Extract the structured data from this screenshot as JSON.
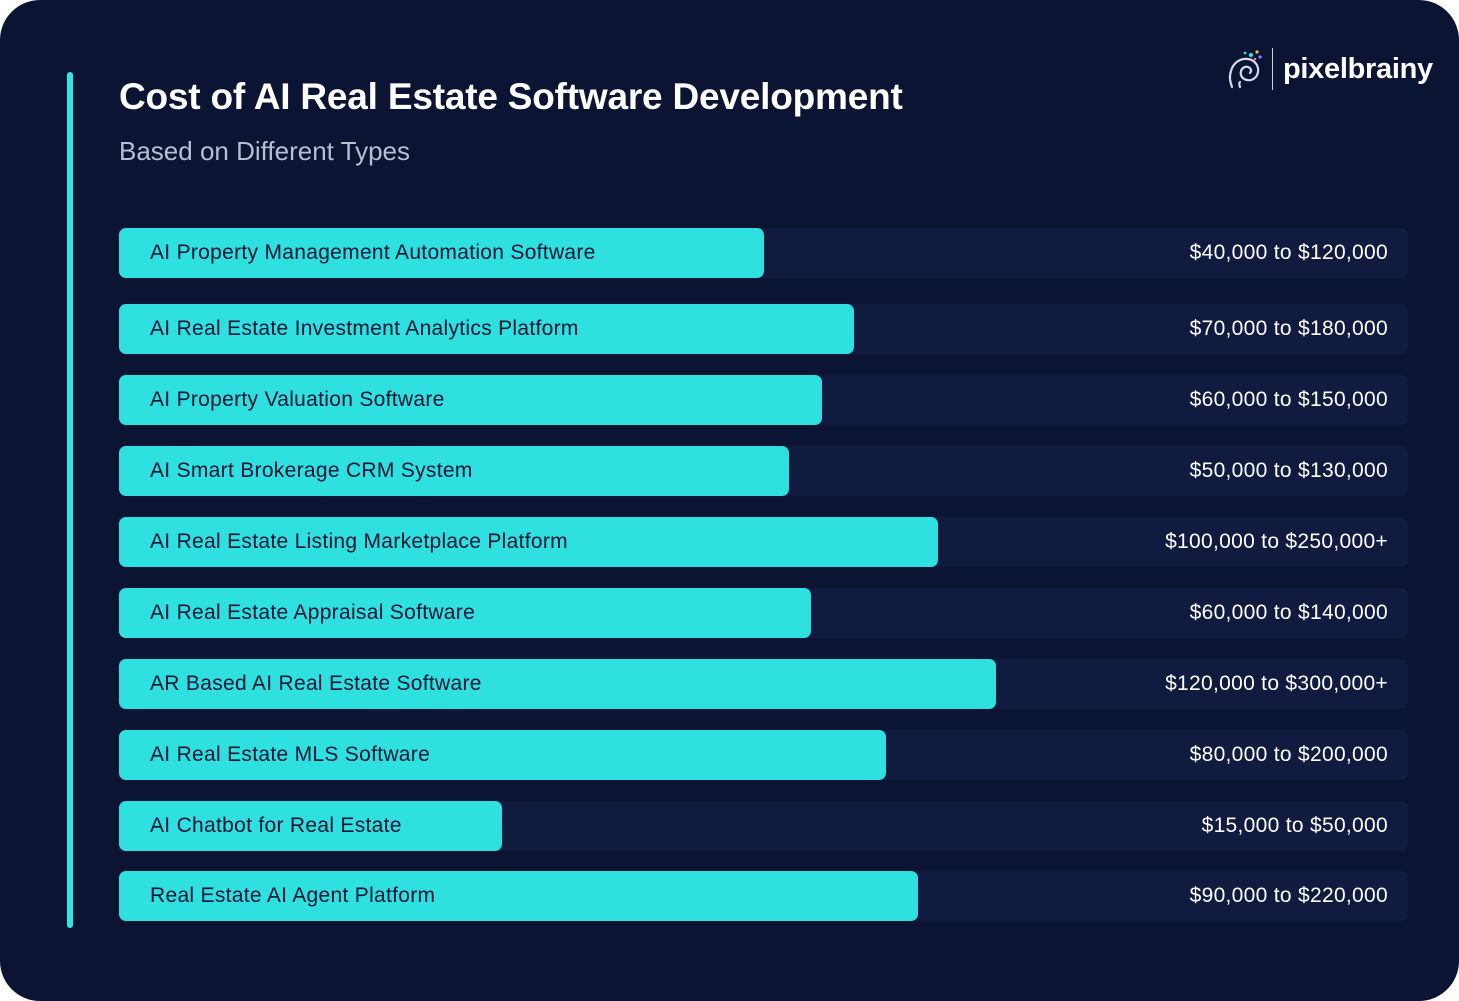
{
  "brand": {
    "name": "pixelbrainy",
    "icon": "brain-swirl-icon",
    "accent_color": "#2ee6e6",
    "background_color": "#0b1433"
  },
  "chart_data": {
    "type": "bar",
    "orientation": "horizontal",
    "title": "Cost of AI Real Estate Software Development",
    "subtitle": "Based on Different Types",
    "unit": "USD",
    "legend": "none",
    "grid": false,
    "xlim": [
      0,
      300000
    ],
    "categories": [
      "AI Property Management Automation Software",
      "AI Real Estate Investment Analytics Platform",
      "AI Property Valuation Software",
      "AI Smart Brokerage CRM System",
      "AI Real Estate Listing Marketplace Platform",
      "AI Real Estate Appraisal Software",
      "AR Based AI Real Estate Software",
      "AI Real Estate MLS Software",
      "AI Chatbot for Real Estate",
      "Real Estate AI Agent Platform"
    ],
    "value_labels": [
      "$40,000 to $120,000",
      "$70,000 to $180,000",
      "$60,000 to $150,000",
      "$50,000 to $130,000",
      "$100,000 to $250,000+",
      "$60,000 to $140,000",
      "$120,000 to $300,000+",
      "$80,000 to $200,000",
      "$15,000 to $50,000",
      "$90,000 to $220,000"
    ],
    "ranges": [
      [
        40000,
        120000
      ],
      [
        70000,
        180000
      ],
      [
        60000,
        150000
      ],
      [
        50000,
        130000
      ],
      [
        100000,
        250000
      ],
      [
        60000,
        140000
      ],
      [
        120000,
        300000
      ],
      [
        80000,
        200000
      ],
      [
        15000,
        50000
      ],
      [
        90000,
        220000
      ]
    ],
    "bar_fill_fractions": [
      0.5,
      0.57,
      0.545,
      0.52,
      0.635,
      0.537,
      0.68,
      0.595,
      0.297,
      0.62
    ]
  }
}
